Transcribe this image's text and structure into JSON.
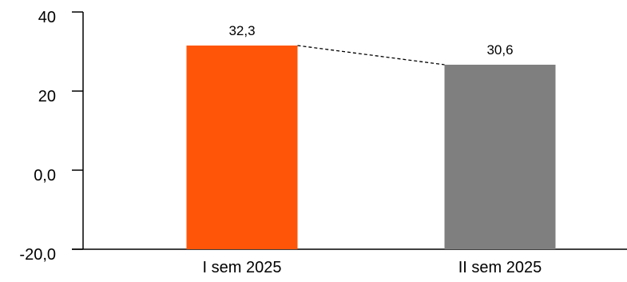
{
  "chart_data": {
    "type": "bar",
    "categories": [
      "I sem 2025",
      "II sem 2025"
    ],
    "values": [
      32.3,
      30.6
    ],
    "data_labels": [
      "32,3",
      "30,6"
    ],
    "colors": [
      "#FF5508",
      "#7F7F7F"
    ],
    "y_ticks": [
      {
        "value": 40,
        "label": "40"
      },
      {
        "value": 20,
        "label": "20"
      },
      {
        "value": 0,
        "label": "0,0"
      },
      {
        "value": -20,
        "label": "-20,0"
      }
    ],
    "ylim": [
      -20,
      40
    ],
    "grid": false,
    "legend": "none",
    "connector": "dashed",
    "title": "",
    "xlabel": "",
    "ylabel": ""
  }
}
